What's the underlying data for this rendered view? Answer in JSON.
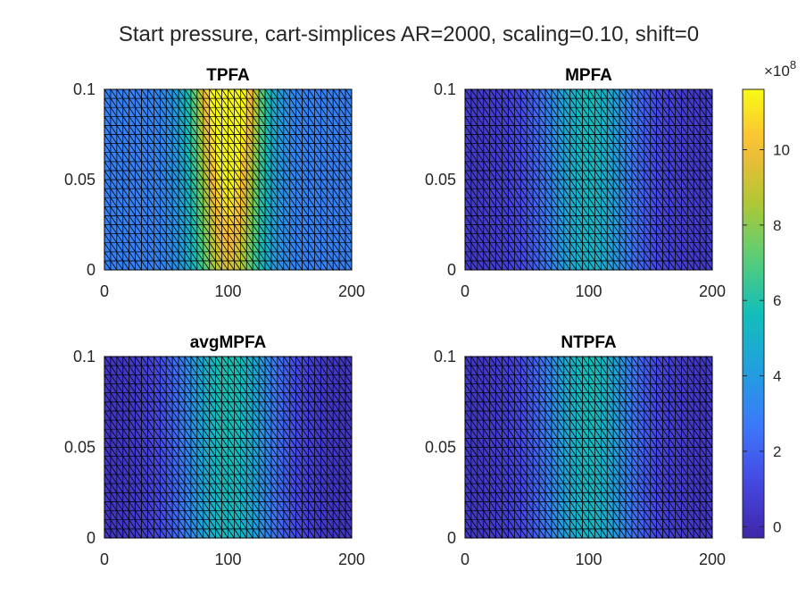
{
  "figure_title": "Start pressure, cart-simplices AR=2000, scaling=0.10, shift=0",
  "chart_data": [
    {
      "type": "heatmap",
      "title": "TPFA",
      "xlim": [
        0,
        200
      ],
      "ylim": [
        0,
        0.1
      ],
      "xticks": [
        "0",
        "100",
        "200"
      ],
      "yticks": [
        "0",
        "0.05",
        "0.1"
      ],
      "mesh": "triangulated cartesian grid",
      "field_model": {
        "peak_x": 100,
        "peak_value": 1170000000.0,
        "background_value": 300000000.0,
        "width": 28,
        "vertical_gradient": 0.55
      }
    },
    {
      "type": "heatmap",
      "title": "MPFA",
      "xlim": [
        0,
        200
      ],
      "ylim": [
        0,
        0.1
      ],
      "xticks": [
        "0",
        "100",
        "200"
      ],
      "yticks": [
        "0",
        "0.05",
        "0.1"
      ],
      "mesh": "triangulated cartesian grid",
      "field_model": {
        "peak_x": 100,
        "peak_value": 530000000.0,
        "background_value": 60000000.0,
        "width": 40,
        "vertical_gradient": 0.1
      }
    },
    {
      "type": "heatmap",
      "title": "avgMPFA",
      "xlim": [
        0,
        200
      ],
      "ylim": [
        0,
        0.1
      ],
      "xticks": [
        "0",
        "100",
        "200"
      ],
      "yticks": [
        "0",
        "0.05",
        "0.1"
      ],
      "mesh": "triangulated cartesian grid",
      "field_model": {
        "peak_x": 100,
        "peak_value": 560000000.0,
        "background_value": 40000000.0,
        "width": 42,
        "vertical_gradient": 0.1
      }
    },
    {
      "type": "heatmap",
      "title": "NTPFA",
      "xlim": [
        0,
        200
      ],
      "ylim": [
        0,
        0.1
      ],
      "xticks": [
        "0",
        "100",
        "200"
      ],
      "yticks": [
        "0",
        "0.05",
        "0.1"
      ],
      "mesh": "triangulated cartesian grid",
      "field_model": {
        "peak_x": 100,
        "peak_value": 540000000.0,
        "background_value": 50000000.0,
        "width": 40,
        "vertical_gradient": 0.1
      }
    }
  ],
  "colorbar": {
    "colormap": "parula",
    "range": [
      -30000000.0,
      1160000000.0
    ],
    "ticks": [
      0,
      2,
      4,
      6,
      8,
      10
    ],
    "tick_labels": [
      "0",
      "2",
      "4",
      "6",
      "8",
      "10"
    ],
    "exponent_label": "×10",
    "exponent_power": "8"
  },
  "colors": {
    "mesh_line": "#000000",
    "text": "#262626",
    "background": "#ffffff"
  }
}
